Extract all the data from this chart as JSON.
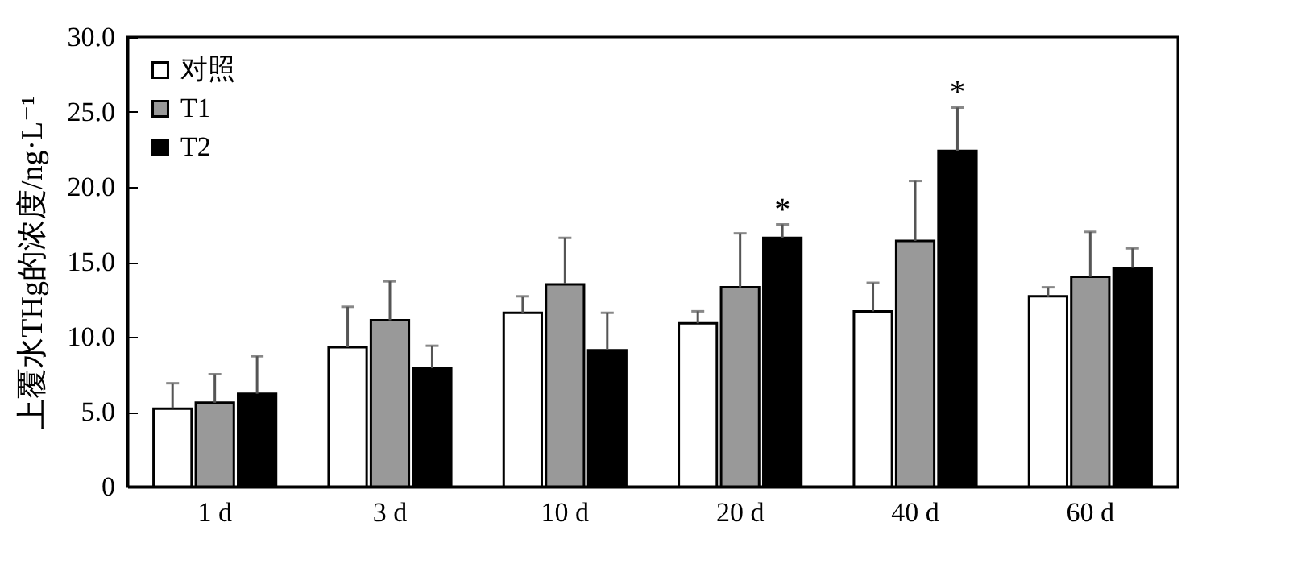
{
  "chart_data": {
    "type": "bar",
    "ylabel": "上覆水THg的浓度/ng·L⁻¹",
    "categories": [
      "1 d",
      "3 d",
      "10 d",
      "20 d",
      "40 d",
      "60 d"
    ],
    "series": [
      {
        "name": "对照",
        "color": "#ffffff",
        "values": [
          5.2,
          9.3,
          11.6,
          10.9,
          11.7,
          12.7
        ],
        "errors": [
          [
            5.2,
            6.9
          ],
          [
            9.3,
            12.0
          ],
          [
            11.6,
            12.7
          ],
          [
            10.9,
            11.7
          ],
          [
            11.7,
            13.6
          ],
          [
            12.7,
            13.3
          ]
        ]
      },
      {
        "name": "T1",
        "color": "#999999",
        "values": [
          5.6,
          11.1,
          13.5,
          13.3,
          16.4,
          14.0
        ],
        "errors": [
          [
            5.6,
            7.5
          ],
          [
            11.1,
            13.7
          ],
          [
            13.5,
            16.6
          ],
          [
            13.3,
            16.9
          ],
          [
            16.4,
            20.4
          ],
          [
            14.0,
            17.0
          ]
        ]
      },
      {
        "name": "T2",
        "color": "#000000",
        "values": [
          6.2,
          7.9,
          9.1,
          16.6,
          22.4,
          14.6
        ],
        "errors": [
          [
            6.2,
            8.7
          ],
          [
            7.9,
            9.4
          ],
          [
            9.1,
            11.6
          ],
          [
            16.6,
            17.5
          ],
          [
            22.4,
            25.3
          ],
          [
            14.6,
            15.9
          ]
        ],
        "value_labels": [
          null,
          null,
          null,
          "*",
          "*",
          null
        ]
      }
    ],
    "ylim": [
      0,
      30
    ],
    "yticks": [
      0,
      {
        "value": 5,
        "label": "5.0"
      },
      {
        "value": 10,
        "label": "10.0"
      },
      {
        "value": 15,
        "label": "15.0"
      },
      {
        "value": 20,
        "label": "20.0"
      },
      {
        "value": 25,
        "label": "25.0"
      },
      {
        "value": 30,
        "label": "30.0"
      }
    ],
    "legend": "top left",
    "grid": false
  }
}
